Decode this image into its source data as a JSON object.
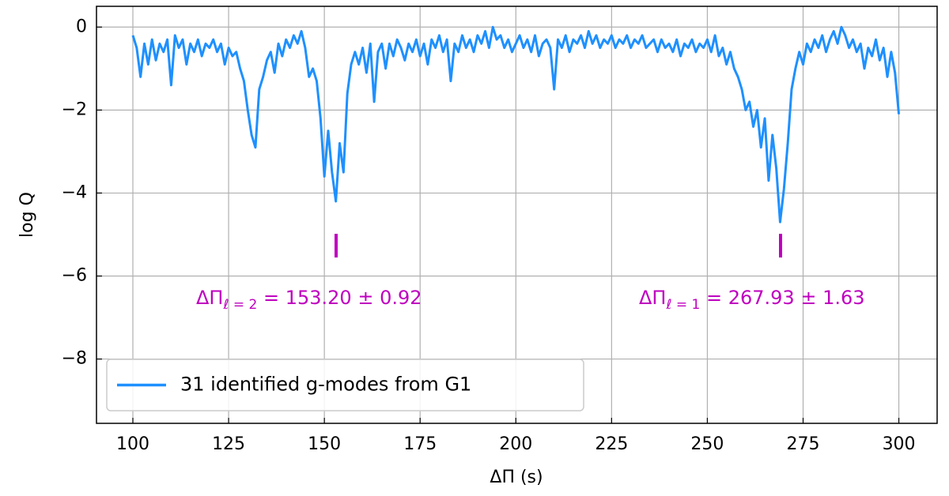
{
  "chart_data": {
    "type": "line",
    "xlabel": "ΔΠ (s)",
    "ylabel": "log Q",
    "xlim": [
      90.5,
      310
    ],
    "ylim": [
      -9.55,
      0.5
    ],
    "xticks": [
      100,
      125,
      150,
      175,
      200,
      225,
      250,
      275,
      300
    ],
    "yticks": [
      0,
      {
        "value": -2,
        "label": "−2"
      },
      {
        "value": -4,
        "label": "−4"
      },
      {
        "value": -6,
        "label": "−6"
      },
      {
        "value": -8,
        "label": "−8"
      }
    ],
    "grid": true,
    "legend": "lower left",
    "annotations": [
      {
        "main": "ΔΠ",
        "sub": "ℓ = 2",
        "rest": " = 153.20 ± 0.92"
      },
      {
        "main": "ΔΠ",
        "sub": "ℓ = 1",
        "rest": " = 267.93 ± 1.63"
      }
    ],
    "x": [
      100,
      101,
      102,
      103,
      104,
      105,
      106,
      107,
      108,
      109,
      110,
      111,
      112,
      113,
      114,
      115,
      116,
      117,
      118,
      119,
      120,
      121,
      122,
      123,
      124,
      125,
      126,
      127,
      128,
      129,
      130,
      131,
      132,
      133,
      134,
      135,
      136,
      137,
      138,
      139,
      140,
      141,
      142,
      143,
      144,
      145,
      146,
      147,
      148,
      149,
      150,
      151,
      152,
      153,
      154,
      155,
      156,
      157,
      158,
      159,
      160,
      161,
      162,
      163,
      164,
      165,
      166,
      167,
      168,
      169,
      170,
      171,
      172,
      173,
      174,
      175,
      176,
      177,
      178,
      179,
      180,
      181,
      182,
      183,
      184,
      185,
      186,
      187,
      188,
      189,
      190,
      191,
      192,
      193,
      194,
      195,
      196,
      197,
      198,
      199,
      200,
      201,
      202,
      203,
      204,
      205,
      206,
      207,
      208,
      209,
      210,
      211,
      212,
      213,
      214,
      215,
      216,
      217,
      218,
      219,
      220,
      221,
      222,
      223,
      224,
      225,
      226,
      227,
      228,
      229,
      230,
      231,
      232,
      233,
      234,
      235,
      236,
      237,
      238,
      239,
      240,
      241,
      242,
      243,
      244,
      245,
      246,
      247,
      248,
      249,
      250,
      251,
      252,
      253,
      254,
      255,
      256,
      257,
      258,
      259,
      260,
      261,
      262,
      263,
      264,
      265,
      266,
      267,
      268,
      269,
      270,
      271,
      272,
      273,
      274,
      275,
      276,
      277,
      278,
      279,
      280,
      281,
      282,
      283,
      284,
      285,
      286,
      287,
      288,
      289,
      290,
      291,
      292,
      293,
      294,
      295,
      296,
      297,
      298,
      299,
      300
    ],
    "series": [
      {
        "name": "31 identified g-modes from G1",
        "color": "#1e90ff",
        "values": [
          -0.2,
          -0.5,
          -1.2,
          -0.4,
          -0.9,
          -0.3,
          -0.8,
          -0.4,
          -0.6,
          -0.3,
          -1.4,
          -0.2,
          -0.5,
          -0.3,
          -0.9,
          -0.4,
          -0.6,
          -0.3,
          -0.7,
          -0.4,
          -0.5,
          -0.3,
          -0.6,
          -0.4,
          -0.9,
          -0.5,
          -0.7,
          -0.6,
          -1.0,
          -1.3,
          -2.0,
          -2.6,
          -2.9,
          -1.5,
          -1.2,
          -0.8,
          -0.6,
          -1.1,
          -0.4,
          -0.7,
          -0.3,
          -0.5,
          -0.2,
          -0.4,
          -0.1,
          -0.5,
          -1.2,
          -1.0,
          -1.3,
          -2.2,
          -3.6,
          -2.5,
          -3.5,
          -4.2,
          -2.8,
          -3.5,
          -1.6,
          -0.9,
          -0.6,
          -0.9,
          -0.5,
          -1.1,
          -0.4,
          -1.8,
          -0.6,
          -0.4,
          -1.0,
          -0.4,
          -0.7,
          -0.3,
          -0.5,
          -0.8,
          -0.4,
          -0.6,
          -0.3,
          -0.7,
          -0.4,
          -0.9,
          -0.3,
          -0.5,
          -0.2,
          -0.6,
          -0.3,
          -1.3,
          -0.4,
          -0.6,
          -0.2,
          -0.5,
          -0.3,
          -0.6,
          -0.2,
          -0.4,
          -0.1,
          -0.5,
          0.0,
          -0.3,
          -0.2,
          -0.5,
          -0.3,
          -0.6,
          -0.4,
          -0.2,
          -0.5,
          -0.3,
          -0.6,
          -0.2,
          -0.7,
          -0.4,
          -0.3,
          -0.5,
          -1.5,
          -0.3,
          -0.5,
          -0.2,
          -0.6,
          -0.3,
          -0.4,
          -0.2,
          -0.5,
          -0.1,
          -0.4,
          -0.2,
          -0.5,
          -0.3,
          -0.4,
          -0.2,
          -0.5,
          -0.3,
          -0.4,
          -0.2,
          -0.5,
          -0.3,
          -0.4,
          -0.2,
          -0.5,
          -0.4,
          -0.3,
          -0.6,
          -0.3,
          -0.5,
          -0.4,
          -0.6,
          -0.3,
          -0.7,
          -0.4,
          -0.5,
          -0.3,
          -0.6,
          -0.4,
          -0.5,
          -0.3,
          -0.6,
          -0.2,
          -0.7,
          -0.5,
          -0.9,
          -0.6,
          -1.0,
          -1.2,
          -1.5,
          -2.0,
          -1.8,
          -2.4,
          -2.0,
          -2.9,
          -2.2,
          -3.7,
          -2.6,
          -3.4,
          -4.7,
          -3.9,
          -2.8,
          -1.5,
          -1.0,
          -0.6,
          -0.9,
          -0.4,
          -0.6,
          -0.3,
          -0.5,
          -0.2,
          -0.6,
          -0.3,
          -0.1,
          -0.4,
          0.0,
          -0.2,
          -0.5,
          -0.3,
          -0.6,
          -0.4,
          -1.0,
          -0.5,
          -0.7,
          -0.3,
          -0.8,
          -0.5,
          -1.2,
          -0.6,
          -1.1,
          -2.1
        ]
      }
    ]
  }
}
